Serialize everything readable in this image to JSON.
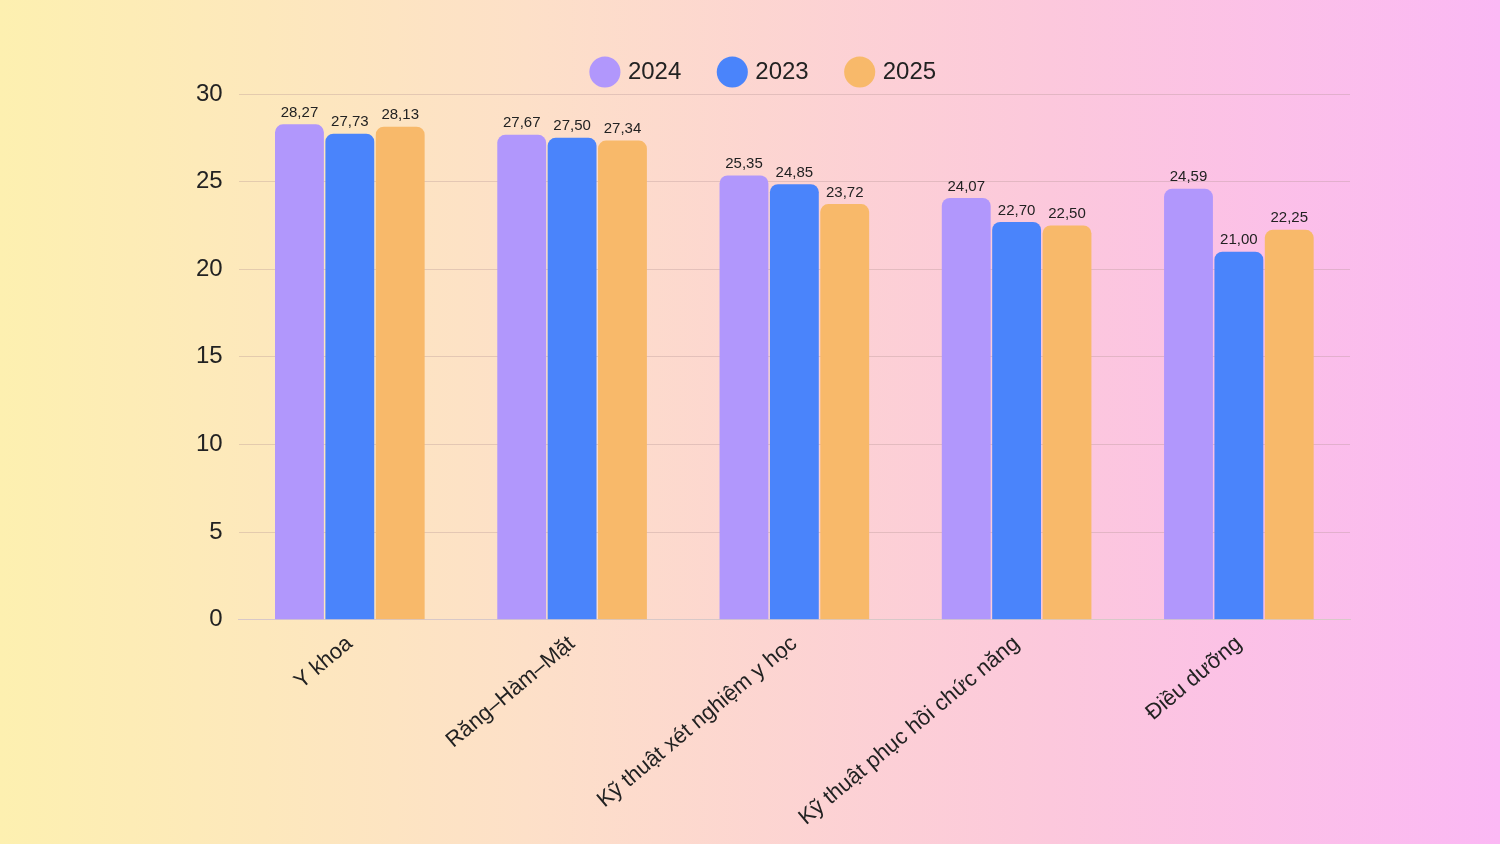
{
  "chart_data": {
    "type": "bar",
    "categories": [
      "Y khoa",
      "Răng–Hàm–Mặt",
      "Kỹ thuật xét nghiệm y học",
      "Kỹ thuật phục hồi chức năng",
      "Điều dưỡng"
    ],
    "series": [
      {
        "name": "2024",
        "color": "#b197fc",
        "values": [
          28.27,
          27.67,
          25.35,
          24.07,
          24.59
        ],
        "value_labels": [
          "28,27",
          "27,67",
          "25,35",
          "24,07",
          "24,59"
        ]
      },
      {
        "name": "2023",
        "color": "#4a84fb",
        "values": [
          27.73,
          27.5,
          24.85,
          22.7,
          21.0
        ],
        "value_labels": [
          "27,73",
          "27,50",
          "24,85",
          "22,70",
          "21,00"
        ]
      },
      {
        "name": "2025",
        "color": "#f8b96a",
        "values": [
          28.13,
          27.34,
          23.72,
          22.5,
          22.25
        ],
        "value_labels": [
          "28,13",
          "27,34",
          "23,72",
          "22,50",
          "22,25"
        ]
      }
    ],
    "ylim": [
      0,
      30
    ],
    "yticks": [
      0,
      5,
      10,
      15,
      20,
      25,
      30
    ],
    "grid": "y",
    "legend": "top"
  }
}
